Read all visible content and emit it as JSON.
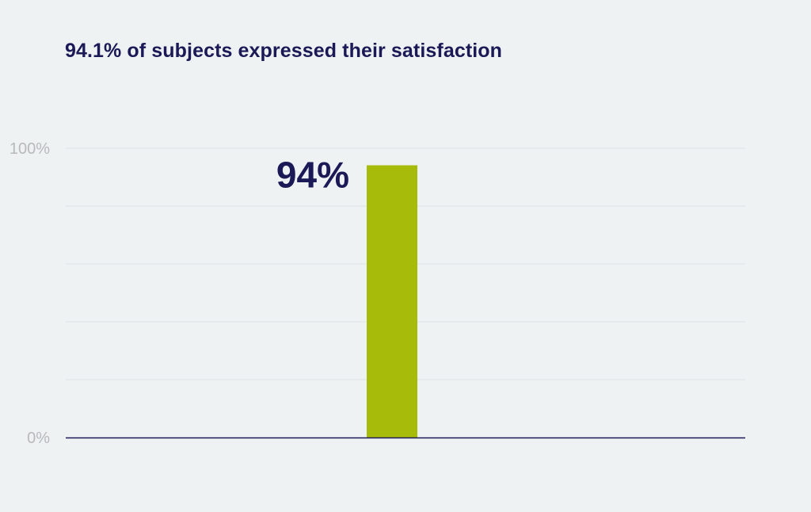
{
  "colors": {
    "background": "#eef2f3",
    "title": "#1b1a56",
    "bar": "#a7bb0b",
    "baseline": "#1b1a56",
    "grid": "#dfe3e4",
    "tick_label": "#b7b9bb",
    "data_label": "#1b1a56"
  },
  "chart_data": {
    "type": "bar",
    "title": "94.1% of subjects expressed their satisfaction",
    "xlabel": "",
    "ylabel": "",
    "categories": [
      ""
    ],
    "values": [
      94.1
    ],
    "data_labels": [
      "94%"
    ],
    "ylim": [
      0,
      100
    ],
    "y_ticks": [
      0,
      20,
      40,
      60,
      80,
      100
    ],
    "y_tick_labels": [
      "0%",
      "",
      "",
      "",
      "",
      "100%"
    ],
    "grid": true,
    "legend": "none"
  }
}
